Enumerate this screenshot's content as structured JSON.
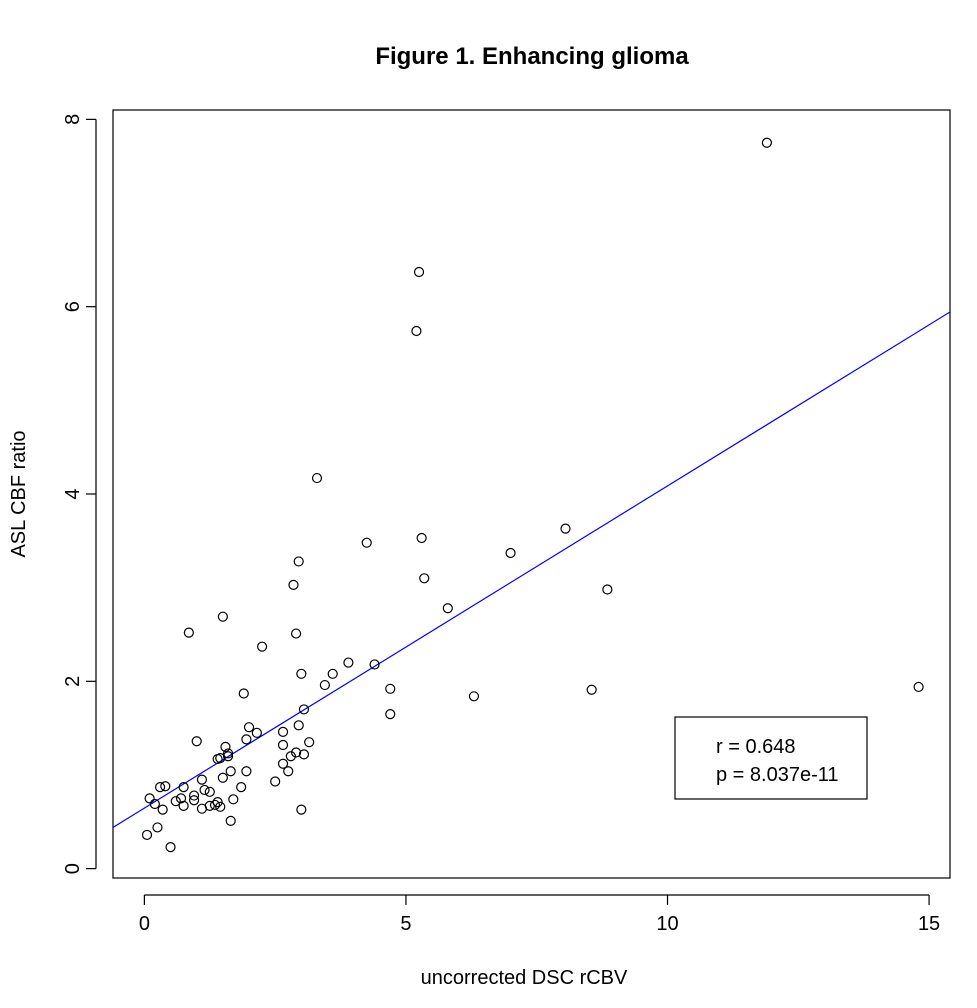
{
  "chart_data": {
    "type": "scatter",
    "title": "Figure 1. Enhancing glioma",
    "xlabel": "uncorrected DSC rCBV",
    "ylabel": "ASL CBF ratio",
    "xlim": [
      -0.6,
      15.4
    ],
    "ylim": [
      -0.1,
      8.1
    ],
    "xticks": [
      0,
      5,
      10,
      15
    ],
    "yticks": [
      0,
      2,
      4,
      6,
      8
    ],
    "grid": false,
    "points": [
      [
        11.9,
        7.75
      ],
      [
        5.25,
        6.37
      ],
      [
        5.2,
        5.74
      ],
      [
        3.3,
        4.17
      ],
      [
        4.25,
        3.48
      ],
      [
        5.3,
        3.53
      ],
      [
        8.05,
        3.63
      ],
      [
        7.0,
        3.37
      ],
      [
        2.95,
        3.28
      ],
      [
        5.35,
        3.1
      ],
      [
        2.85,
        3.03
      ],
      [
        8.85,
        2.98
      ],
      [
        5.8,
        2.78
      ],
      [
        1.5,
        2.69
      ],
      [
        0.85,
        2.52
      ],
      [
        2.9,
        2.51
      ],
      [
        2.25,
        2.37
      ],
      [
        3.9,
        2.2
      ],
      [
        4.4,
        2.18
      ],
      [
        3.6,
        2.08
      ],
      [
        3.0,
        2.08
      ],
      [
        3.45,
        1.96
      ],
      [
        4.7,
        1.92
      ],
      [
        8.55,
        1.91
      ],
      [
        14.8,
        1.94
      ],
      [
        1.9,
        1.87
      ],
      [
        6.3,
        1.84
      ],
      [
        3.05,
        1.7
      ],
      [
        4.7,
        1.65
      ],
      [
        2.0,
        1.51
      ],
      [
        2.95,
        1.53
      ],
      [
        2.15,
        1.45
      ],
      [
        2.65,
        1.46
      ],
      [
        1.95,
        1.38
      ],
      [
        1.0,
        1.36
      ],
      [
        3.15,
        1.35
      ],
      [
        2.65,
        1.32
      ],
      [
        1.55,
        1.3
      ],
      [
        1.6,
        1.23
      ],
      [
        2.9,
        1.24
      ],
      [
        3.05,
        1.22
      ],
      [
        1.45,
        1.18
      ],
      [
        2.8,
        1.2
      ],
      [
        1.6,
        1.2
      ],
      [
        1.4,
        1.17
      ],
      [
        2.65,
        1.12
      ],
      [
        1.65,
        1.04
      ],
      [
        1.95,
        1.04
      ],
      [
        2.75,
        1.04
      ],
      [
        1.5,
        0.97
      ],
      [
        1.1,
        0.95
      ],
      [
        2.5,
        0.93
      ],
      [
        0.4,
        0.88
      ],
      [
        0.3,
        0.87
      ],
      [
        0.75,
        0.87
      ],
      [
        1.85,
        0.87
      ],
      [
        1.15,
        0.84
      ],
      [
        1.25,
        0.82
      ],
      [
        0.95,
        0.78
      ],
      [
        0.7,
        0.75
      ],
      [
        0.1,
        0.75
      ],
      [
        1.7,
        0.74
      ],
      [
        0.95,
        0.73
      ],
      [
        0.6,
        0.72
      ],
      [
        1.4,
        0.71
      ],
      [
        0.2,
        0.69
      ],
      [
        1.35,
        0.68
      ],
      [
        0.75,
        0.67
      ],
      [
        1.45,
        0.66
      ],
      [
        1.25,
        0.67
      ],
      [
        1.1,
        0.64
      ],
      [
        0.35,
        0.63
      ],
      [
        3.0,
        0.63
      ],
      [
        1.65,
        0.51
      ],
      [
        0.25,
        0.44
      ],
      [
        0.05,
        0.36
      ],
      [
        0.5,
        0.23
      ]
    ],
    "fit_line": {
      "intercept": 0.646,
      "slope": 0.344,
      "color": "#0000ff"
    },
    "legend": {
      "lines": [
        "r = 0.648",
        "p = 8.037e-11"
      ],
      "placement": "bottom-right"
    }
  }
}
